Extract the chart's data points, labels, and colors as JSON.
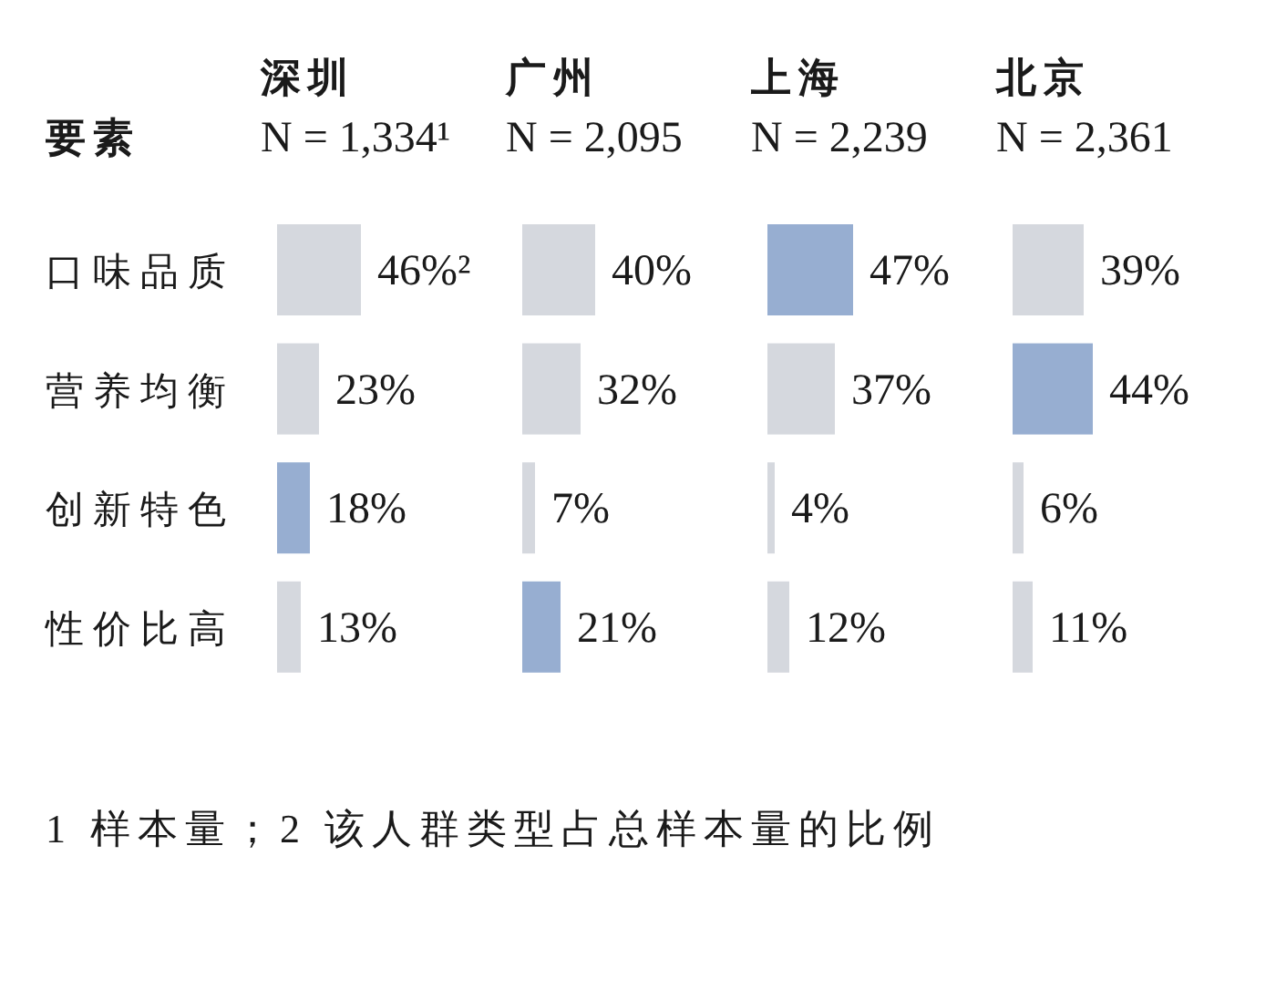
{
  "chart_data": [
    {
      "type": "bar",
      "orientation": "horizontal",
      "title": "深圳",
      "subtitle": "N = 1,334¹",
      "ylabel": "要素",
      "categories": [
        "口味品质",
        "营养均衡",
        "创新特色",
        "性价比高"
      ],
      "values": [
        46,
        23,
        18,
        13
      ],
      "colors": [
        "#d5d8de",
        "#d5d8de",
        "#97aed1",
        "#d5d8de"
      ],
      "value_labels": [
        "46%²",
        "23%",
        "18%",
        "13%"
      ],
      "tick_labels": "y",
      "annotations": [
        "1 样本量；2 该人群类型占总样本量的比例"
      ]
    },
    {
      "type": "bar",
      "orientation": "horizontal",
      "title": "广州",
      "subtitle": "N = 2,095",
      "categories": [
        null,
        null,
        null,
        null
      ],
      "values": [
        40,
        32,
        7,
        21
      ],
      "colors": [
        "#d5d8de",
        "#d5d8de",
        "#d5d8de",
        "#97aed1"
      ],
      "value_labels": [
        "40%",
        "32%",
        "7%",
        "21%"
      ],
      "tick_labels": false
    },
    {
      "type": "bar",
      "orientation": "horizontal",
      "title": "上海",
      "subtitle": "N = 2,239",
      "categories": [
        null,
        null,
        null,
        null
      ],
      "values": [
        47,
        37,
        4,
        12
      ],
      "colors": [
        "#97aed1",
        "#d5d8de",
        "#d5d8de",
        "#d5d8de"
      ],
      "value_labels": [
        "47%",
        "37%",
        "4%",
        "12%"
      ],
      "tick_labels": false
    },
    {
      "type": "bar",
      "orientation": "horizontal",
      "title": "北京",
      "subtitle": "N = 2,361",
      "categories": [
        null,
        null,
        null,
        null
      ],
      "values": [
        39,
        44,
        6,
        11
      ],
      "colors": [
        "#d5d8de",
        "#97aed1",
        "#d5d8de",
        "#d5d8de"
      ],
      "value_labels": [
        "39%",
        "44%",
        "6%",
        "11%"
      ],
      "tick_labels": false
    }
  ]
}
